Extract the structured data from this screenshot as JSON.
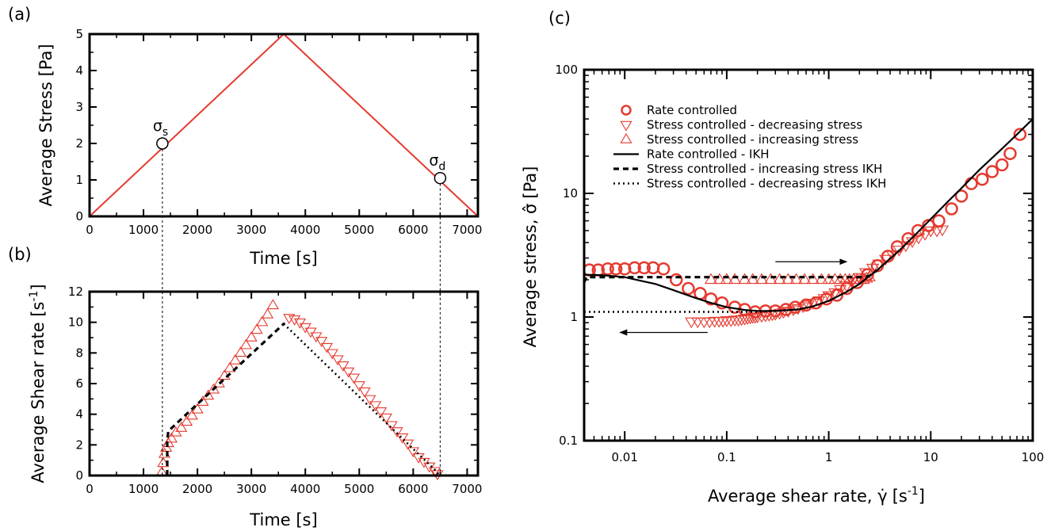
{
  "colors": {
    "data": "#e53a2f",
    "model": "#000000",
    "axes": "#000000"
  },
  "chart_data": [
    {
      "panel": "a",
      "type": "line",
      "panel_label": "(a)",
      "xlabel": "Time [s]",
      "ylabel": "Average Stress [Pa]",
      "xlim": [
        0,
        7200
      ],
      "ylim": [
        0,
        5
      ],
      "xticks": [
        0,
        1000,
        2000,
        3000,
        4000,
        5000,
        6000,
        7000
      ],
      "yticks": [
        0,
        1,
        2,
        3,
        4,
        5
      ],
      "series": [
        {
          "style": "solid-red",
          "x": [
            0,
            3600,
            7200
          ],
          "y": [
            0,
            5,
            0
          ]
        }
      ],
      "points": [
        {
          "label": "σs",
          "main": "σ",
          "sub": "s",
          "x": 1350,
          "y": 2.0
        },
        {
          "label": "σd",
          "main": "σ",
          "sub": "d",
          "x": 6500,
          "y": 1.05
        }
      ]
    },
    {
      "panel": "b",
      "type": "scatter",
      "panel_label": "(b)",
      "xlabel": "Time [s]",
      "ylabel": "Average Shear rate [s",
      "ylabel_sup": "-1",
      "ylabel_end": "]",
      "xlim": [
        0,
        7200
      ],
      "ylim": [
        0,
        12
      ],
      "xticks": [
        0,
        1000,
        2000,
        3000,
        4000,
        5000,
        6000,
        7000
      ],
      "yticks": [
        0,
        2,
        4,
        6,
        8,
        10,
        12
      ],
      "series": [
        {
          "marker": "triangle-up-open",
          "x": [
            1340,
            1365,
            1390,
            1420,
            1460,
            1520,
            1600,
            1700,
            1800,
            1900,
            2000,
            2100,
            2200,
            2300,
            2400,
            2500,
            2600,
            2700,
            2800,
            2900,
            3000,
            3100,
            3200,
            3300,
            3400
          ],
          "y": [
            0.2,
            0.8,
            1.4,
            1.8,
            2.1,
            2.4,
            2.8,
            3.1,
            3.5,
            3.9,
            4.3,
            4.8,
            5.2,
            5.6,
            6.0,
            6.5,
            7.0,
            7.5,
            8.0,
            8.5,
            9.0,
            9.5,
            10.0,
            10.5,
            11.1
          ]
        },
        {
          "marker": "triangle-down-open",
          "x": [
            3700,
            3800,
            3900,
            4000,
            4100,
            4200,
            4300,
            4400,
            4500,
            4600,
            4700,
            4800,
            4900,
            5000,
            5100,
            5200,
            5300,
            5400,
            5500,
            5600,
            5700,
            5800,
            5900,
            6000,
            6100,
            6200,
            6300,
            6400,
            6450
          ],
          "y": [
            10.3,
            10.2,
            10.0,
            9.7,
            9.4,
            9.1,
            8.8,
            8.4,
            8.0,
            7.6,
            7.2,
            6.8,
            6.4,
            5.9,
            5.5,
            5.0,
            4.6,
            4.2,
            3.8,
            3.3,
            2.9,
            2.5,
            2.1,
            1.6,
            1.2,
            0.9,
            0.6,
            0.3,
            0.1
          ]
        },
        {
          "style": "dashed",
          "x": [
            1440,
            1440,
            1460,
            3600,
            3620
          ],
          "y": [
            0,
            2.3,
            2.9,
            9.9,
            9.9
          ]
        },
        {
          "style": "dotted",
          "x": [
            3600,
            6450,
            6470
          ],
          "y": [
            9.9,
            0.2,
            0
          ]
        }
      ]
    },
    {
      "panel": "c",
      "type": "scatter",
      "panel_label": "(c)",
      "xlabel": "Average shear rate, ",
      "xlabel_sym": "γ̇",
      "xlabel_unit": "[s",
      "xlabel_sup": "-1",
      "xlabel_end": "]",
      "ylabel": "Average stress, ",
      "ylabel_sym": "σ̂",
      "ylabel_unit": "[Pa]",
      "xscale": "log",
      "yscale": "log",
      "xlim": [
        0.004,
        100
      ],
      "ylim": [
        0.1,
        100
      ],
      "xticks": [
        0.01,
        0.1,
        1,
        10,
        100
      ],
      "xtick_labels": [
        "0.01",
        "0.1",
        "1",
        "10",
        "100"
      ],
      "yticks": [
        0.1,
        1,
        10,
        100
      ],
      "ytick_labels": [
        "0.1",
        "1",
        "10",
        "100"
      ],
      "legend_position": "upper-left",
      "series": [
        {
          "name": "Rate controlled",
          "marker": "circle-open",
          "x": [
            0.0045,
            0.0055,
            0.0068,
            0.0082,
            0.01,
            0.0125,
            0.0155,
            0.019,
            0.024,
            0.032,
            0.042,
            0.055,
            0.07,
            0.09,
            0.12,
            0.15,
            0.19,
            0.24,
            0.3,
            0.38,
            0.47,
            0.6,
            0.75,
            0.95,
            1.2,
            1.5,
            1.9,
            2.4,
            3.0,
            3.8,
            4.7,
            6.0,
            7.5,
            9.5,
            12,
            16,
            20,
            25,
            32,
            40,
            50,
            60,
            75
          ],
          "y": [
            2.4,
            2.4,
            2.45,
            2.45,
            2.45,
            2.5,
            2.5,
            2.5,
            2.45,
            2.0,
            1.7,
            1.55,
            1.4,
            1.3,
            1.2,
            1.15,
            1.1,
            1.12,
            1.12,
            1.15,
            1.2,
            1.25,
            1.3,
            1.4,
            1.5,
            1.7,
            1.9,
            2.2,
            2.6,
            3.1,
            3.7,
            4.3,
            5.0,
            5.5,
            6.0,
            7.5,
            9.5,
            12,
            13,
            15,
            17,
            21,
            30
          ]
        },
        {
          "name": "Stress controlled - decreasing stress",
          "marker": "triangle-down-open",
          "x": [
            0.045,
            0.052,
            0.06,
            0.068,
            0.076,
            0.084,
            0.092,
            0.1,
            0.11,
            0.12,
            0.13,
            0.14,
            0.15,
            0.16,
            0.17,
            0.18,
            0.19,
            0.2,
            0.22,
            0.24,
            0.26,
            0.28,
            0.3,
            0.33,
            0.36,
            0.4,
            0.45,
            0.5,
            0.56,
            0.63,
            0.7,
            0.8,
            0.9,
            1.0,
            1.15,
            1.3,
            1.5,
            1.7,
            2.0,
            2.3,
            2.7,
            3.1,
            3.6,
            4.2,
            4.9,
            5.7,
            6.6,
            7.6,
            8.8,
            10,
            11.5,
            13
          ],
          "y": [
            0.92,
            0.92,
            0.92,
            0.92,
            0.93,
            0.93,
            0.93,
            0.94,
            0.94,
            0.95,
            0.95,
            0.96,
            0.97,
            0.98,
            0.99,
            1.0,
            1.0,
            1.01,
            1.02,
            1.03,
            1.04,
            1.05,
            1.06,
            1.08,
            1.1,
            1.12,
            1.15,
            1.18,
            1.22,
            1.26,
            1.3,
            1.36,
            1.42,
            1.5,
            1.58,
            1.68,
            1.8,
            1.95,
            2.1,
            2.3,
            2.5,
            2.7,
            2.95,
            3.2,
            3.5,
            3.8,
            4.1,
            4.4,
            4.7,
            5.0,
            5.0,
            5.1
          ]
        },
        {
          "name": "Stress controlled - increasing stress",
          "marker": "triangle-up-open",
          "x": [
            0.07,
            0.085,
            0.1,
            0.12,
            0.15,
            0.18,
            0.22,
            0.27,
            0.33,
            0.4,
            0.48,
            0.58,
            0.7,
            0.85,
            1.0,
            1.15,
            1.3,
            1.45,
            1.6,
            1.75,
            1.9,
            2.05,
            2.2,
            2.35,
            2.5
          ],
          "y": [
            2.0,
            2.0,
            2.0,
            2.0,
            2.0,
            2.0,
            2.0,
            2.0,
            2.0,
            2.0,
            2.0,
            2.0,
            2.0,
            2.0,
            2.0,
            2.0,
            2.0,
            2.0,
            2.0,
            2.0,
            2.0,
            2.0,
            2.0,
            2.05,
            2.1
          ]
        },
        {
          "name": "Rate controlled - IKH",
          "style": "solid",
          "x": [
            0.004,
            0.006,
            0.01,
            0.015,
            0.02,
            0.03,
            0.05,
            0.07,
            0.1,
            0.15,
            0.2,
            0.3,
            0.5,
            0.7,
            1,
            1.5,
            2,
            3,
            5,
            7,
            10,
            15,
            20,
            30,
            50,
            70,
            100
          ],
          "y": [
            2.2,
            2.18,
            2.1,
            1.95,
            1.85,
            1.65,
            1.42,
            1.3,
            1.2,
            1.14,
            1.12,
            1.12,
            1.15,
            1.22,
            1.35,
            1.6,
            1.85,
            2.4,
            3.5,
            4.6,
            6.2,
            8.7,
            11,
            15.5,
            23,
            30,
            40
          ]
        },
        {
          "name": "Stress controlled - increasing stress IKH",
          "style": "dashed",
          "x": [
            0.004,
            0.0042,
            0.0045,
            2.2,
            2.5,
            3.0
          ],
          "y": [
            1.9,
            2.1,
            2.1,
            2.1,
            2.15,
            2.4
          ]
        },
        {
          "name": "Stress controlled - decreasing stress IKH",
          "style": "dotted",
          "x": [
            0.004,
            0.15,
            0.2,
            0.3,
            0.5
          ],
          "y": [
            1.1,
            1.1,
            1.1,
            1.12,
            1.15
          ]
        }
      ],
      "arrows": [
        {
          "direction": "right",
          "x": [
            0.3,
            1.5
          ],
          "y": 2.8
        },
        {
          "direction": "left",
          "x": [
            0.065,
            0.009
          ],
          "y": 0.75
        }
      ]
    }
  ]
}
